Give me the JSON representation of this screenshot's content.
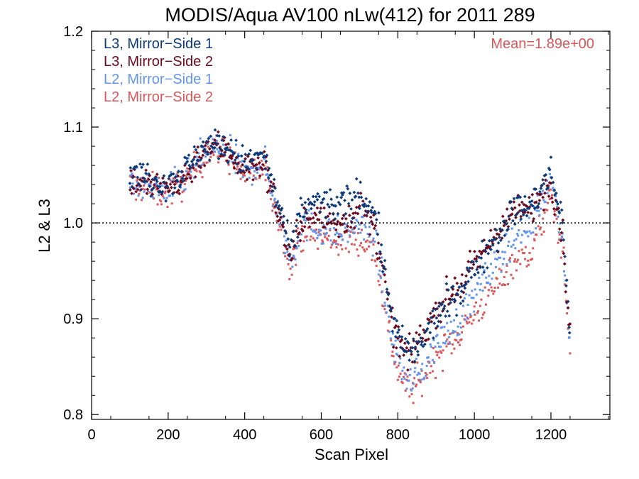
{
  "chart_data": {
    "type": "scatter",
    "title": "MODIS/Aqua AV100 nLw(412) for 2011 289",
    "xlabel": "Scan Pixel",
    "ylabel": "L2 & L3",
    "xlim": [
      0,
      1354
    ],
    "ylim": [
      0.795,
      1.2
    ],
    "xticks": [
      0,
      200,
      400,
      600,
      800,
      1000,
      1200
    ],
    "xtick_labels": [
      "0",
      "200",
      "400",
      "600",
      "800",
      "1000",
      "1200"
    ],
    "yticks": [
      0.8,
      0.9,
      1.0,
      1.1,
      1.2
    ],
    "ytick_labels": [
      "0.8",
      "0.9",
      "1.0",
      "1.1",
      "1.2"
    ],
    "reference_line": 1.0,
    "legend_position": "top-left",
    "annotation": {
      "text": "Mean=1.89e+00",
      "color": "#d9585b",
      "position": "top-right"
    },
    "grid": false,
    "x_range_of_points": [
      100,
      1250
    ],
    "series": [
      {
        "name": "L3, Mirror−Side 1",
        "color": "#0d3a78",
        "marker": "diamond",
        "offset": 0.004,
        "profile_x": [
          100,
          150,
          200,
          250,
          300,
          350,
          400,
          450,
          500,
          520,
          550,
          600,
          650,
          700,
          740,
          760,
          780,
          800,
          830,
          860,
          900,
          950,
          1000,
          1050,
          1100,
          1150,
          1200,
          1230,
          1250
        ],
        "profile_y": [
          1.05,
          1.045,
          1.04,
          1.055,
          1.08,
          1.078,
          1.06,
          1.068,
          1.0,
          0.965,
          1.015,
          1.02,
          1.015,
          1.03,
          1.01,
          0.96,
          0.91,
          0.88,
          0.86,
          0.87,
          0.9,
          0.92,
          0.95,
          0.98,
          1.01,
          1.015,
          1.05,
          1.0,
          0.88
        ]
      },
      {
        "name": "L3, Mirror−Side 2",
        "color": "#6e0a1e",
        "marker": "diamond",
        "offset": 0.0,
        "profile_x": [
          100,
          150,
          200,
          250,
          300,
          350,
          400,
          450,
          500,
          520,
          550,
          600,
          650,
          700,
          740,
          760,
          780,
          800,
          830,
          860,
          900,
          950,
          1000,
          1050,
          1100,
          1150,
          1200,
          1230,
          1250
        ],
        "profile_y": [
          1.045,
          1.04,
          1.035,
          1.05,
          1.08,
          1.078,
          1.055,
          1.062,
          0.995,
          0.96,
          1.005,
          1.005,
          1.0,
          1.015,
          0.995,
          0.95,
          0.905,
          0.875,
          0.86,
          0.88,
          0.91,
          0.93,
          0.955,
          0.985,
          1.01,
          1.015,
          1.045,
          0.99,
          0.88
        ]
      },
      {
        "name": "L2, Mirror−Side 1",
        "color": "#6495ed",
        "marker": "square",
        "offset": -0.003,
        "profile_x": [
          100,
          150,
          200,
          250,
          300,
          350,
          400,
          450,
          500,
          520,
          550,
          600,
          650,
          700,
          740,
          760,
          780,
          800,
          830,
          860,
          900,
          950,
          1000,
          1050,
          1100,
          1150,
          1200,
          1230,
          1250
        ],
        "profile_y": [
          1.045,
          1.04,
          1.035,
          1.05,
          1.078,
          1.078,
          1.055,
          1.065,
          0.995,
          0.96,
          1.0,
          0.995,
          0.99,
          1.0,
          0.985,
          0.94,
          0.89,
          0.86,
          0.835,
          0.845,
          0.875,
          0.895,
          0.925,
          0.955,
          0.985,
          1.0,
          1.05,
          0.99,
          0.87
        ]
      },
      {
        "name": "L2, Mirror−Side 2",
        "color": "#d9585b",
        "marker": "square",
        "offset": -0.01,
        "profile_x": [
          100,
          150,
          200,
          250,
          300,
          350,
          400,
          450,
          500,
          520,
          550,
          600,
          650,
          700,
          740,
          760,
          780,
          800,
          830,
          860,
          900,
          950,
          1000,
          1050,
          1100,
          1150,
          1200,
          1230,
          1250
        ],
        "profile_y": [
          1.045,
          1.04,
          1.035,
          1.05,
          1.078,
          1.078,
          1.055,
          1.062,
          0.995,
          0.96,
          0.995,
          0.99,
          0.985,
          0.99,
          0.975,
          0.93,
          0.885,
          0.85,
          0.83,
          0.84,
          0.865,
          0.885,
          0.91,
          0.935,
          0.965,
          0.975,
          1.03,
          0.98,
          0.87
        ]
      }
    ]
  }
}
